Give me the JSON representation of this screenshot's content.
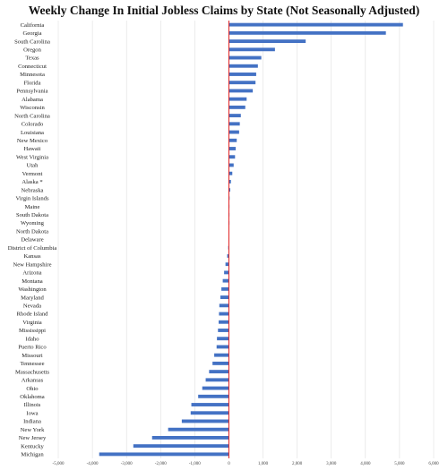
{
  "chart_data": {
    "type": "bar",
    "orientation": "horizontal",
    "title": "Weekly Change In Initial Jobless Claims by State (Not Seasonally Adjusted)",
    "xlabel": "",
    "ylabel": "",
    "xlim": [
      -5000,
      6000
    ],
    "grid": true,
    "legend": "none",
    "bar_color": "#4472c4",
    "zero_line_color": "#e02020",
    "x_ticks": [
      "-5,000",
      "-4,000",
      "-3,000",
      "-2,000",
      "-1,000",
      "0",
      "1,000",
      "2,000",
      "3,000",
      "4,000",
      "5,000",
      "6,000"
    ],
    "x_tick_values": [
      -5000,
      -4000,
      -3000,
      -2000,
      -1000,
      0,
      1000,
      2000,
      3000,
      4000,
      5000,
      6000
    ],
    "categories": [
      "California",
      "Georgia",
      "South Carolina",
      "Oregon",
      "Texas",
      "Connecticut",
      "Minnesota",
      "Florida",
      "Pennsylvania",
      "Alabama",
      "Wisconsin",
      "North Carolina",
      "Colorado",
      "Louisiana",
      "New Mexico",
      "Hawaii",
      "West Virginia",
      "Utah",
      "Vermont",
      "Alaska *",
      "Nebraska",
      "Virgin Islands",
      "Maine",
      "South Dakota",
      "Wyoming",
      "North Dakota",
      "Delaware",
      "District of Columbia",
      "Kansas",
      "New Hampshire",
      "Arizona",
      "Montana",
      "Washington",
      "Maryland",
      "Nevada",
      "Rhode Island",
      "Virginia",
      "Mississippi",
      "Idaho",
      "Puerto Rico",
      "Missouri",
      "Tennessee",
      "Massachusetts",
      "Arkansas",
      "Ohio",
      "Oklahoma",
      "Illinois",
      "Iowa",
      "Indiana",
      "New York",
      "New Jersey",
      "Kentucky",
      "Michigan"
    ],
    "values": [
      5100,
      4600,
      2250,
      1350,
      950,
      850,
      800,
      780,
      700,
      520,
      480,
      350,
      320,
      300,
      230,
      200,
      180,
      140,
      100,
      60,
      40,
      20,
      15,
      10,
      5,
      0,
      -10,
      -20,
      -50,
      -100,
      -140,
      -180,
      -220,
      -250,
      -280,
      -290,
      -300,
      -320,
      -350,
      -360,
      -430,
      -480,
      -580,
      -680,
      -780,
      -900,
      -1100,
      -1120,
      -1380,
      -1780,
      -2250,
      -2800,
      -3800
    ]
  }
}
